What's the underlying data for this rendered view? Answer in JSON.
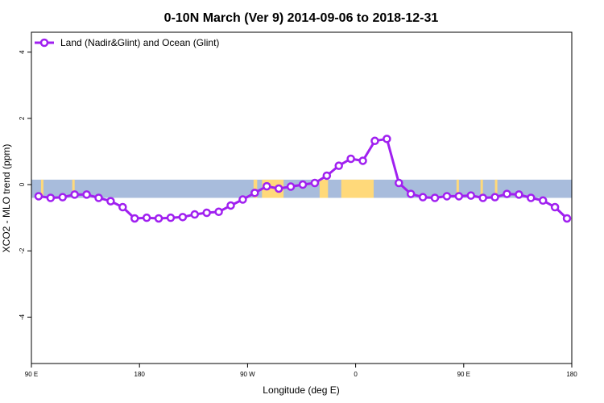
{
  "chart_data": {
    "type": "line",
    "title": "0-10N March (Ver 9)   2014-09-06 to 2018-12-31",
    "xlabel": "Longitude (deg E)",
    "ylabel": "XCO2 - MLO trend (ppm)",
    "x_ticks": [
      {
        "value": 90,
        "label": "90 E"
      },
      {
        "value": 180,
        "label": "180"
      },
      {
        "value": 270,
        "label": "90 W"
      },
      {
        "value": 360,
        "label": "0"
      },
      {
        "value": 450,
        "label": "90 E"
      },
      {
        "value": 540,
        "label": "180"
      }
    ],
    "y_ticks": [
      {
        "value": -4,
        "label": "-4"
      },
      {
        "value": -2,
        "label": "-2"
      },
      {
        "value": 0,
        "label": "0"
      },
      {
        "value": 2,
        "label": "2"
      },
      {
        "value": 4,
        "label": "4"
      }
    ],
    "xlim": [
      90,
      540
    ],
    "ylim": [
      -5.4,
      4.6
    ],
    "band": {
      "ymin": -0.4,
      "ymax": 0.15,
      "ocean_color": "#a8bcdc",
      "land_color": "#ffd97a"
    },
    "land_segments": [
      [
        98,
        100
      ],
      [
        124,
        126
      ],
      [
        275,
        278
      ],
      [
        282,
        300
      ],
      [
        330,
        337
      ],
      [
        348,
        375
      ],
      [
        444,
        446
      ],
      [
        464,
        466
      ],
      [
        476,
        478
      ]
    ],
    "legend": {
      "position": "top-left",
      "entries": [
        "Land (Nadir&Glint) and Ocean (Glint)"
      ]
    },
    "series": [
      {
        "name": "Land (Nadir&Glint) and Ocean (Glint)",
        "color": "#a020f0",
        "x": [
          96,
          106,
          116,
          126,
          136,
          146,
          156,
          166,
          176,
          186,
          196,
          206,
          216,
          226,
          236,
          246,
          256,
          266,
          276,
          286,
          296,
          306,
          316,
          326,
          336,
          346,
          356,
          366,
          376,
          386,
          396,
          406,
          416,
          426,
          436,
          446,
          456,
          466,
          476,
          486,
          496,
          506,
          516,
          526,
          536
        ],
        "values": [
          -0.35,
          -0.4,
          -0.38,
          -0.3,
          -0.3,
          -0.4,
          -0.5,
          -0.68,
          -1.02,
          -1.0,
          -1.02,
          -1.0,
          -0.98,
          -0.9,
          -0.85,
          -0.82,
          -0.63,
          -0.45,
          -0.25,
          -0.05,
          -0.12,
          -0.06,
          0.0,
          0.05,
          0.27,
          0.57,
          0.78,
          0.72,
          1.32,
          1.38,
          0.05,
          -0.28,
          -0.38,
          -0.4,
          -0.35,
          -0.35,
          -0.33,
          -0.4,
          -0.38,
          -0.28,
          -0.3,
          -0.4,
          -0.48,
          -0.68,
          -1.02
        ]
      }
    ]
  }
}
